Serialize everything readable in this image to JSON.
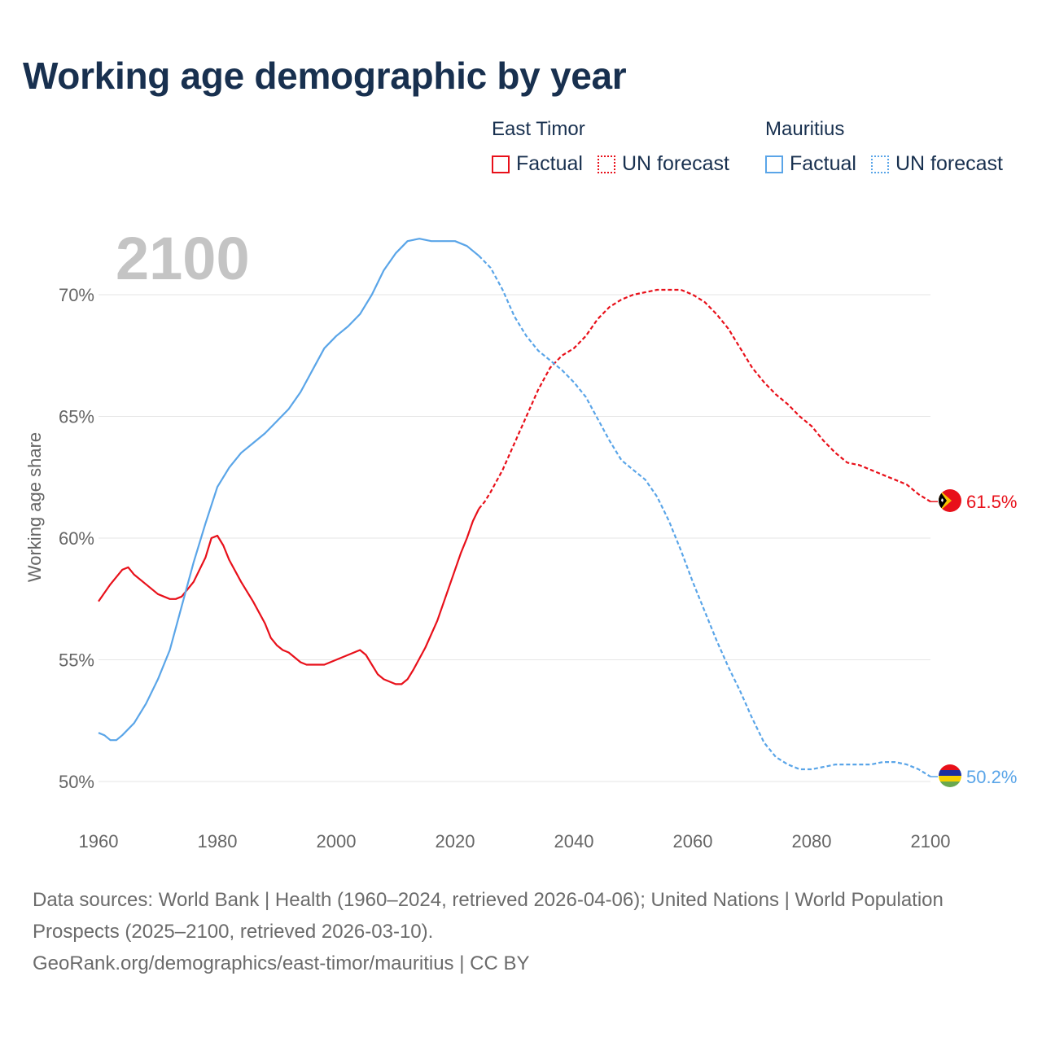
{
  "title": "Working age demographic by year",
  "colors": {
    "east_timor": "#e8101a",
    "mauritius": "#5aa5e8",
    "title": "#18304f",
    "grid": "#e6e6e6",
    "axis_text": "#666666",
    "year_watermark": "#c4c4c4"
  },
  "legend": {
    "east_timor": {
      "title": "East Timor",
      "factual": "Factual",
      "forecast": "UN forecast"
    },
    "mauritius": {
      "title": "Mauritius",
      "factual": "Factual",
      "forecast": "UN forecast"
    }
  },
  "chart_data": {
    "type": "line",
    "title": "Working age demographic by year",
    "year_label": "2100",
    "ylabel": "Working age share",
    "xlabel": "",
    "xlim": [
      1960,
      2100
    ],
    "ylim": [
      50,
      70
    ],
    "x_ticks": [
      "1960",
      "1980",
      "2000",
      "2020",
      "2040",
      "2060",
      "2080",
      "2100"
    ],
    "y_ticks": [
      {
        "value": 50,
        "label": "50%"
      },
      {
        "value": 55,
        "label": "55%"
      },
      {
        "value": 60,
        "label": "60%"
      },
      {
        "value": 65,
        "label": "65%"
      },
      {
        "value": 70,
        "label": "70%"
      }
    ],
    "grid": true,
    "series": [
      {
        "name": "East Timor",
        "color_key": "east_timor",
        "end_label": "61.5%",
        "factual": [
          [
            1960,
            57.4
          ],
          [
            1962,
            58.1
          ],
          [
            1964,
            58.7
          ],
          [
            1965,
            58.8
          ],
          [
            1966,
            58.5
          ],
          [
            1968,
            58.1
          ],
          [
            1970,
            57.7
          ],
          [
            1972,
            57.5
          ],
          [
            1973,
            57.5
          ],
          [
            1974,
            57.6
          ],
          [
            1976,
            58.2
          ],
          [
            1978,
            59.2
          ],
          [
            1979,
            60.0
          ],
          [
            1980,
            60.1
          ],
          [
            1981,
            59.7
          ],
          [
            1982,
            59.1
          ],
          [
            1984,
            58.2
          ],
          [
            1986,
            57.4
          ],
          [
            1988,
            56.5
          ],
          [
            1989,
            55.9
          ],
          [
            1990,
            55.6
          ],
          [
            1991,
            55.4
          ],
          [
            1992,
            55.3
          ],
          [
            1994,
            54.9
          ],
          [
            1995,
            54.8
          ],
          [
            1998,
            54.8
          ],
          [
            2000,
            55.0
          ],
          [
            2002,
            55.2
          ],
          [
            2004,
            55.4
          ],
          [
            2005,
            55.2
          ],
          [
            2007,
            54.4
          ],
          [
            2008,
            54.2
          ],
          [
            2010,
            54.0
          ],
          [
            2011,
            54.0
          ],
          [
            2012,
            54.2
          ],
          [
            2013,
            54.6
          ],
          [
            2015,
            55.5
          ],
          [
            2017,
            56.6
          ],
          [
            2019,
            58.0
          ],
          [
            2021,
            59.4
          ],
          [
            2022,
            60.0
          ],
          [
            2023,
            60.7
          ],
          [
            2024,
            61.2
          ]
        ],
        "forecast": [
          [
            2024,
            61.2
          ],
          [
            2025,
            61.5
          ],
          [
            2026,
            61.9
          ],
          [
            2028,
            62.8
          ],
          [
            2030,
            63.9
          ],
          [
            2032,
            65.0
          ],
          [
            2034,
            66.1
          ],
          [
            2036,
            67.0
          ],
          [
            2038,
            67.5
          ],
          [
            2040,
            67.8
          ],
          [
            2042,
            68.3
          ],
          [
            2044,
            69.0
          ],
          [
            2046,
            69.5
          ],
          [
            2048,
            69.8
          ],
          [
            2050,
            70.0
          ],
          [
            2052,
            70.1
          ],
          [
            2054,
            70.2
          ],
          [
            2056,
            70.2
          ],
          [
            2058,
            70.2
          ],
          [
            2060,
            70.0
          ],
          [
            2062,
            69.7
          ],
          [
            2064,
            69.2
          ],
          [
            2066,
            68.6
          ],
          [
            2068,
            67.8
          ],
          [
            2070,
            67.0
          ],
          [
            2072,
            66.4
          ],
          [
            2074,
            65.9
          ],
          [
            2076,
            65.5
          ],
          [
            2078,
            65.0
          ],
          [
            2080,
            64.6
          ],
          [
            2082,
            64.0
          ],
          [
            2084,
            63.5
          ],
          [
            2086,
            63.1
          ],
          [
            2088,
            63.0
          ],
          [
            2090,
            62.8
          ],
          [
            2092,
            62.6
          ],
          [
            2094,
            62.4
          ],
          [
            2096,
            62.2
          ],
          [
            2098,
            61.8
          ],
          [
            2100,
            61.5
          ]
        ]
      },
      {
        "name": "Mauritius",
        "color_key": "mauritius",
        "end_label": "50.2%",
        "factual": [
          [
            1960,
            52.0
          ],
          [
            1961,
            51.9
          ],
          [
            1962,
            51.7
          ],
          [
            1963,
            51.7
          ],
          [
            1964,
            51.9
          ],
          [
            1966,
            52.4
          ],
          [
            1968,
            53.2
          ],
          [
            1970,
            54.2
          ],
          [
            1972,
            55.4
          ],
          [
            1974,
            57.2
          ],
          [
            1976,
            59.0
          ],
          [
            1978,
            60.6
          ],
          [
            1980,
            62.1
          ],
          [
            1982,
            62.9
          ],
          [
            1984,
            63.5
          ],
          [
            1986,
            63.9
          ],
          [
            1988,
            64.3
          ],
          [
            1990,
            64.8
          ],
          [
            1992,
            65.3
          ],
          [
            1994,
            66.0
          ],
          [
            1996,
            66.9
          ],
          [
            1998,
            67.8
          ],
          [
            2000,
            68.3
          ],
          [
            2002,
            68.7
          ],
          [
            2004,
            69.2
          ],
          [
            2006,
            70.0
          ],
          [
            2008,
            71.0
          ],
          [
            2010,
            71.7
          ],
          [
            2012,
            72.2
          ],
          [
            2014,
            72.3
          ],
          [
            2016,
            72.2
          ],
          [
            2020,
            72.2
          ],
          [
            2022,
            72.0
          ],
          [
            2024,
            71.6
          ]
        ],
        "forecast": [
          [
            2024,
            71.6
          ],
          [
            2026,
            71.1
          ],
          [
            2028,
            70.2
          ],
          [
            2030,
            69.1
          ],
          [
            2032,
            68.3
          ],
          [
            2034,
            67.7
          ],
          [
            2036,
            67.3
          ],
          [
            2038,
            66.9
          ],
          [
            2040,
            66.4
          ],
          [
            2042,
            65.8
          ],
          [
            2044,
            64.9
          ],
          [
            2046,
            64.0
          ],
          [
            2048,
            63.2
          ],
          [
            2050,
            62.8
          ],
          [
            2052,
            62.4
          ],
          [
            2054,
            61.7
          ],
          [
            2056,
            60.7
          ],
          [
            2058,
            59.5
          ],
          [
            2060,
            58.2
          ],
          [
            2062,
            57.0
          ],
          [
            2064,
            55.8
          ],
          [
            2066,
            54.7
          ],
          [
            2068,
            53.7
          ],
          [
            2070,
            52.6
          ],
          [
            2072,
            51.6
          ],
          [
            2074,
            51.0
          ],
          [
            2076,
            50.7
          ],
          [
            2078,
            50.5
          ],
          [
            2080,
            50.5
          ],
          [
            2082,
            50.6
          ],
          [
            2084,
            50.7
          ],
          [
            2090,
            50.7
          ],
          [
            2092,
            50.8
          ],
          [
            2094,
            50.8
          ],
          [
            2096,
            50.7
          ],
          [
            2098,
            50.5
          ],
          [
            2100,
            50.2
          ]
        ]
      }
    ]
  },
  "source": {
    "line1": "Data sources: World Bank | Health (1960–2024, retrieved 2026-04-06); United Nations | World Population Prospects (2025–2100, retrieved 2026-03-10).",
    "line2": "GeoRank.org/demographics/east-timor/mauritius | CC BY"
  }
}
